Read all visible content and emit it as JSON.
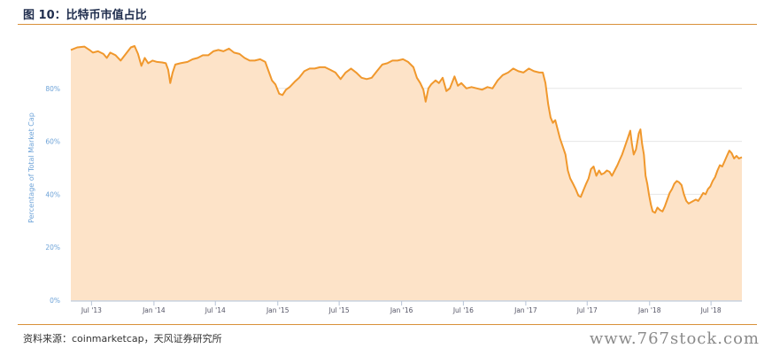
{
  "header": {
    "title": "图 10：比特币市值占比"
  },
  "footer": {
    "source": "资料来源：coinmarketcap，天风证券研究所",
    "watermark": "www.767stock.com"
  },
  "colors": {
    "line": "#f0982d",
    "fill": "#fde3c8",
    "grid": "#e6e6e6",
    "tick_text": "#6ea3d8",
    "rule": "#d9913a"
  },
  "chart_data": {
    "type": "area",
    "ylabel": "Percentage of Total Market Cap",
    "ylim": [
      0,
      100
    ],
    "yticks": [
      0,
      20,
      40,
      60,
      80
    ],
    "ytick_labels": [
      "0%",
      "20%",
      "40%",
      "60%",
      "80%"
    ],
    "xlim": [
      "2013-05-01",
      "2018-09-30"
    ],
    "xticks": [
      {
        "date": "2013-07-01",
        "label": "Jul '13"
      },
      {
        "date": "2014-01-01",
        "label": "Jan '14"
      },
      {
        "date": "2014-07-01",
        "label": "Jul '14"
      },
      {
        "date": "2015-01-01",
        "label": "Jan '15"
      },
      {
        "date": "2015-07-01",
        "label": "Jul '15"
      },
      {
        "date": "2016-01-01",
        "label": "Jan '16"
      },
      {
        "date": "2016-07-01",
        "label": "Jul '16"
      },
      {
        "date": "2017-01-01",
        "label": "Jan '17"
      },
      {
        "date": "2017-07-01",
        "label": "Jul '17"
      },
      {
        "date": "2018-01-01",
        "label": "Jan '18"
      },
      {
        "date": "2018-07-01",
        "label": "Jul '18"
      }
    ],
    "series": [
      {
        "values": [
          [
            "2013-05-01",
            94.5
          ],
          [
            "2013-05-20",
            95.5
          ],
          [
            "2013-06-10",
            95.8
          ],
          [
            "2013-06-25",
            94.5
          ],
          [
            "2013-07-05",
            93.5
          ],
          [
            "2013-07-20",
            94.0
          ],
          [
            "2013-08-05",
            93.0
          ],
          [
            "2013-08-15",
            91.5
          ],
          [
            "2013-08-25",
            93.5
          ],
          [
            "2013-09-10",
            92.5
          ],
          [
            "2013-09-25",
            90.5
          ],
          [
            "2013-10-10",
            93.0
          ],
          [
            "2013-10-25",
            95.5
          ],
          [
            "2013-11-05",
            96.0
          ],
          [
            "2013-11-15",
            93.0
          ],
          [
            "2013-11-25",
            88.5
          ],
          [
            "2013-12-05",
            91.5
          ],
          [
            "2013-12-15",
            89.5
          ],
          [
            "2013-12-28",
            90.5
          ],
          [
            "2014-01-10",
            90.0
          ],
          [
            "2014-01-25",
            89.8
          ],
          [
            "2014-02-05",
            89.5
          ],
          [
            "2014-02-12",
            87.0
          ],
          [
            "2014-02-18",
            82.0
          ],
          [
            "2014-02-25",
            86.0
          ],
          [
            "2014-03-05",
            89.0
          ],
          [
            "2014-03-20",
            89.5
          ],
          [
            "2014-04-10",
            90.0
          ],
          [
            "2014-04-25",
            91.0
          ],
          [
            "2014-05-10",
            91.5
          ],
          [
            "2014-05-25",
            92.5
          ],
          [
            "2014-06-10",
            92.5
          ],
          [
            "2014-06-25",
            94.0
          ],
          [
            "2014-07-10",
            94.5
          ],
          [
            "2014-07-25",
            94.0
          ],
          [
            "2014-08-10",
            95.0
          ],
          [
            "2014-08-25",
            93.5
          ],
          [
            "2014-09-10",
            93.0
          ],
          [
            "2014-09-25",
            91.5
          ],
          [
            "2014-10-10",
            90.5
          ],
          [
            "2014-10-25",
            90.5
          ],
          [
            "2014-11-10",
            91.0
          ],
          [
            "2014-11-25",
            90.0
          ],
          [
            "2014-12-05",
            86.5
          ],
          [
            "2014-12-15",
            83.0
          ],
          [
            "2014-12-25",
            81.5
          ],
          [
            "2015-01-05",
            78.0
          ],
          [
            "2015-01-15",
            77.5
          ],
          [
            "2015-01-25",
            79.5
          ],
          [
            "2015-02-05",
            80.5
          ],
          [
            "2015-02-20",
            82.5
          ],
          [
            "2015-03-05",
            84.0
          ],
          [
            "2015-03-20",
            86.5
          ],
          [
            "2015-04-05",
            87.5
          ],
          [
            "2015-04-20",
            87.5
          ],
          [
            "2015-05-05",
            88.0
          ],
          [
            "2015-05-20",
            88.0
          ],
          [
            "2015-06-05",
            87.0
          ],
          [
            "2015-06-20",
            86.0
          ],
          [
            "2015-07-05",
            83.5
          ],
          [
            "2015-07-20",
            86.0
          ],
          [
            "2015-08-05",
            87.5
          ],
          [
            "2015-08-20",
            86.0
          ],
          [
            "2015-09-05",
            84.0
          ],
          [
            "2015-09-20",
            83.5
          ],
          [
            "2015-10-05",
            84.0
          ],
          [
            "2015-10-20",
            86.5
          ],
          [
            "2015-11-05",
            89.0
          ],
          [
            "2015-11-20",
            89.5
          ],
          [
            "2015-12-05",
            90.5
          ],
          [
            "2015-12-20",
            90.5
          ],
          [
            "2016-01-05",
            91.0
          ],
          [
            "2016-01-20",
            90.0
          ],
          [
            "2016-02-05",
            88.0
          ],
          [
            "2016-02-15",
            84.0
          ],
          [
            "2016-02-25",
            82.0
          ],
          [
            "2016-03-05",
            79.5
          ],
          [
            "2016-03-12",
            75.0
          ],
          [
            "2016-03-20",
            80.0
          ],
          [
            "2016-03-28",
            81.5
          ],
          [
            "2016-04-10",
            83.0
          ],
          [
            "2016-04-20",
            82.0
          ],
          [
            "2016-05-01",
            84.0
          ],
          [
            "2016-05-12",
            79.0
          ],
          [
            "2016-05-22",
            80.0
          ],
          [
            "2016-06-05",
            84.5
          ],
          [
            "2016-06-15",
            81.0
          ],
          [
            "2016-06-25",
            82.0
          ],
          [
            "2016-07-10",
            80.0
          ],
          [
            "2016-07-25",
            80.5
          ],
          [
            "2016-08-10",
            80.0
          ],
          [
            "2016-08-25",
            79.5
          ],
          [
            "2016-09-10",
            80.5
          ],
          [
            "2016-09-25",
            80.0
          ],
          [
            "2016-10-10",
            83.0
          ],
          [
            "2016-10-25",
            85.0
          ],
          [
            "2016-11-10",
            86.0
          ],
          [
            "2016-11-25",
            87.5
          ],
          [
            "2016-12-10",
            86.5
          ],
          [
            "2016-12-25",
            86.0
          ],
          [
            "2017-01-10",
            87.5
          ],
          [
            "2017-01-25",
            86.5
          ],
          [
            "2017-02-10",
            86.0
          ],
          [
            "2017-02-20",
            86.0
          ],
          [
            "2017-02-28",
            82.0
          ],
          [
            "2017-03-08",
            74.0
          ],
          [
            "2017-03-15",
            69.0
          ],
          [
            "2017-03-22",
            67.0
          ],
          [
            "2017-03-29",
            68.0
          ],
          [
            "2017-04-05",
            64.5
          ],
          [
            "2017-04-12",
            61.0
          ],
          [
            "2017-04-20",
            58.0
          ],
          [
            "2017-04-28",
            55.0
          ],
          [
            "2017-05-05",
            49.0
          ],
          [
            "2017-05-12",
            46.0
          ],
          [
            "2017-05-20",
            44.0
          ],
          [
            "2017-05-28",
            42.0
          ],
          [
            "2017-06-05",
            39.5
          ],
          [
            "2017-06-12",
            39.0
          ],
          [
            "2017-06-20",
            41.5
          ],
          [
            "2017-06-28",
            44.0
          ],
          [
            "2017-07-05",
            46.0
          ],
          [
            "2017-07-12",
            49.5
          ],
          [
            "2017-07-20",
            50.5
          ],
          [
            "2017-07-28",
            47.0
          ],
          [
            "2017-08-05",
            49.0
          ],
          [
            "2017-08-12",
            47.5
          ],
          [
            "2017-08-20",
            48.0
          ],
          [
            "2017-08-28",
            49.0
          ],
          [
            "2017-09-05",
            48.5
          ],
          [
            "2017-09-12",
            47.0
          ],
          [
            "2017-09-20",
            49.0
          ],
          [
            "2017-09-28",
            51.0
          ],
          [
            "2017-10-05",
            53.0
          ],
          [
            "2017-10-12",
            55.0
          ],
          [
            "2017-10-20",
            58.0
          ],
          [
            "2017-10-28",
            61.0
          ],
          [
            "2017-11-05",
            64.0
          ],
          [
            "2017-11-10",
            59.0
          ],
          [
            "2017-11-15",
            55.0
          ],
          [
            "2017-11-22",
            57.0
          ],
          [
            "2017-11-30",
            63.0
          ],
          [
            "2017-12-05",
            64.5
          ],
          [
            "2017-12-10",
            59.0
          ],
          [
            "2017-12-15",
            55.0
          ],
          [
            "2017-12-20",
            47.0
          ],
          [
            "2017-12-25",
            44.0
          ],
          [
            "2017-12-30",
            40.0
          ],
          [
            "2018-01-05",
            36.0
          ],
          [
            "2018-01-10",
            33.5
          ],
          [
            "2018-01-17",
            33.0
          ],
          [
            "2018-01-24",
            35.0
          ],
          [
            "2018-02-01",
            34.0
          ],
          [
            "2018-02-08",
            33.5
          ],
          [
            "2018-02-15",
            35.5
          ],
          [
            "2018-02-22",
            38.0
          ],
          [
            "2018-03-01",
            40.5
          ],
          [
            "2018-03-08",
            42.0
          ],
          [
            "2018-03-15",
            44.0
          ],
          [
            "2018-03-22",
            45.0
          ],
          [
            "2018-03-29",
            44.5
          ],
          [
            "2018-04-05",
            43.5
          ],
          [
            "2018-04-12",
            40.0
          ],
          [
            "2018-04-19",
            37.5
          ],
          [
            "2018-04-26",
            36.5
          ],
          [
            "2018-05-03",
            37.0
          ],
          [
            "2018-05-10",
            37.5
          ],
          [
            "2018-05-17",
            38.0
          ],
          [
            "2018-05-24",
            37.5
          ],
          [
            "2018-06-01",
            39.0
          ],
          [
            "2018-06-08",
            40.5
          ],
          [
            "2018-06-15",
            40.0
          ],
          [
            "2018-06-22",
            42.0
          ],
          [
            "2018-06-29",
            43.0
          ],
          [
            "2018-07-06",
            45.0
          ],
          [
            "2018-07-13",
            46.5
          ],
          [
            "2018-07-20",
            49.0
          ],
          [
            "2018-07-27",
            51.0
          ],
          [
            "2018-08-03",
            50.5
          ],
          [
            "2018-08-10",
            52.5
          ],
          [
            "2018-08-17",
            54.5
          ],
          [
            "2018-08-24",
            56.5
          ],
          [
            "2018-08-31",
            55.5
          ],
          [
            "2018-09-07",
            53.5
          ],
          [
            "2018-09-14",
            54.5
          ],
          [
            "2018-09-21",
            53.5
          ],
          [
            "2018-09-30",
            54.0
          ]
        ]
      }
    ]
  }
}
